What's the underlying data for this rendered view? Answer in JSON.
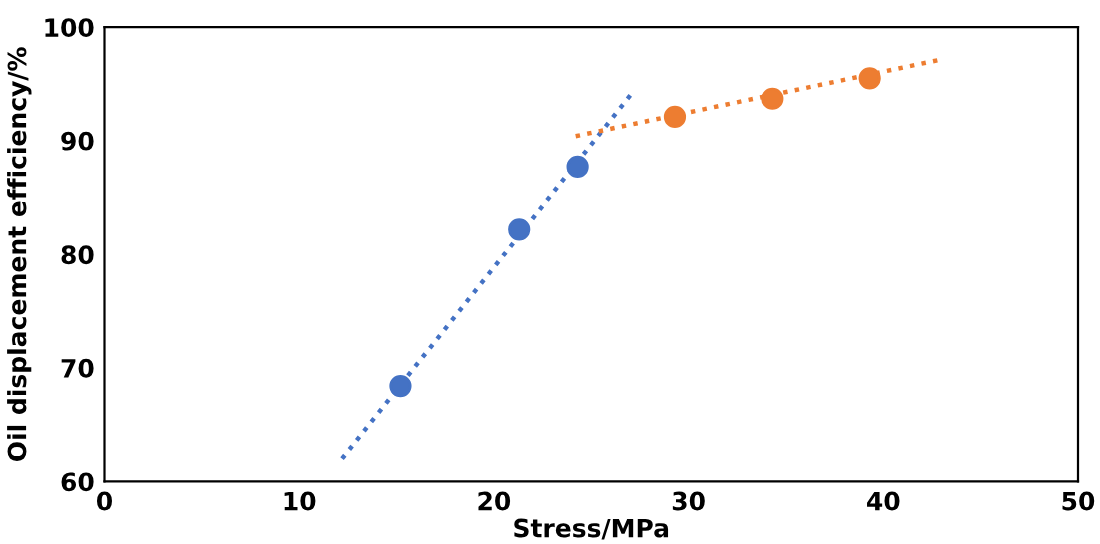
{
  "chart_data": {
    "type": "scatter",
    "xlabel": "Stress/MPa",
    "ylabel": "Oil displacement efficiency/%",
    "xlim": [
      0,
      50
    ],
    "xticks": [
      0,
      10,
      20,
      30,
      40,
      50
    ],
    "ylim": [
      60,
      100
    ],
    "yticks": [
      60,
      70,
      80,
      90,
      100
    ],
    "grid": false,
    "series": [
      {
        "color": "#4472c4",
        "marker": "circle",
        "x": [
          15.2,
          21.3,
          24.3
        ],
        "values": [
          68.4,
          82.2,
          87.7
        ]
      },
      {
        "color": "#ed7d31",
        "marker": "circle",
        "x": [
          29.3,
          34.3,
          39.3
        ],
        "values": [
          92.1,
          93.7,
          95.5
        ]
      },
      {
        "type": "line",
        "color": "#4472c4",
        "marker": "none",
        "line_style": "dotted",
        "x": [
          12.2,
          27.1
        ],
        "values": [
          62.0,
          94.2
        ]
      },
      {
        "type": "line",
        "color": "#ed7d31",
        "marker": "none",
        "line_style": "dotted",
        "x": [
          24.2,
          43.1
        ],
        "values": [
          90.4,
          97.2
        ]
      }
    ]
  }
}
